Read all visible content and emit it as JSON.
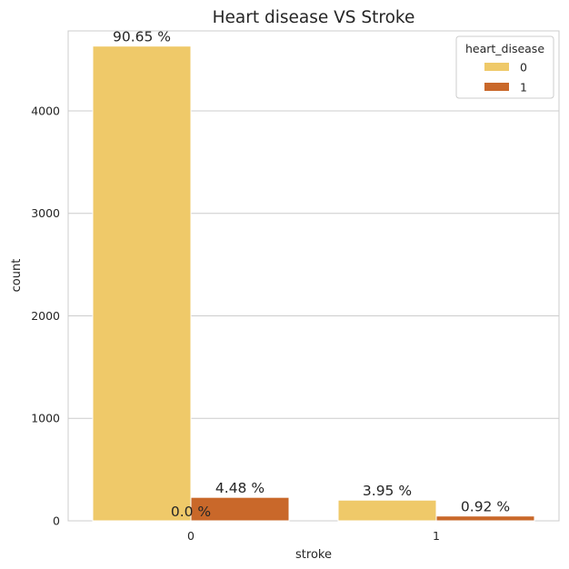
{
  "chart_data": {
    "type": "bar",
    "title": "Heart disease VS Stroke",
    "xlabel": "stroke",
    "ylabel": "count",
    "categories": [
      "0",
      "1"
    ],
    "ylim": [
      0,
      4780
    ],
    "yticks": [
      0,
      1000,
      2000,
      3000,
      4000
    ],
    "grid": true,
    "legend": {
      "title": "heart_disease",
      "placement": "top-right"
    },
    "series": [
      {
        "name": "0",
        "color": "#efc969",
        "values": [
          4632,
          202
        ],
        "labels": [
          "90.65 %",
          "3.95 %"
        ]
      },
      {
        "name": "1",
        "color": "#c9682a",
        "values": [
          229,
          47
        ],
        "labels": [
          "4.48 %",
          "0.92 %"
        ]
      }
    ],
    "annotations": [
      {
        "text": "0.0 %",
        "category": "0",
        "value": 0
      }
    ]
  }
}
